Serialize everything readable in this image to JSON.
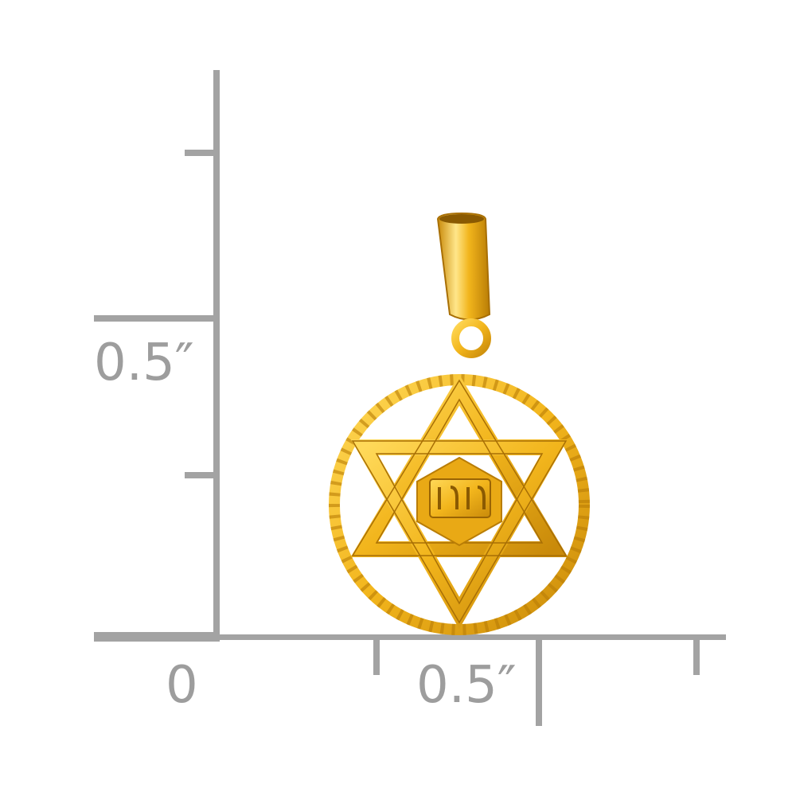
{
  "ruler": {
    "vertical_label": "0.5″",
    "horizontal_zero": "0",
    "horizontal_label": "0.5″",
    "color": "#a3a3a3"
  },
  "pendant": {
    "metal_color": "#f2b51c",
    "highlight_color": "#ffe27a",
    "shadow_color": "#b97d06"
  }
}
